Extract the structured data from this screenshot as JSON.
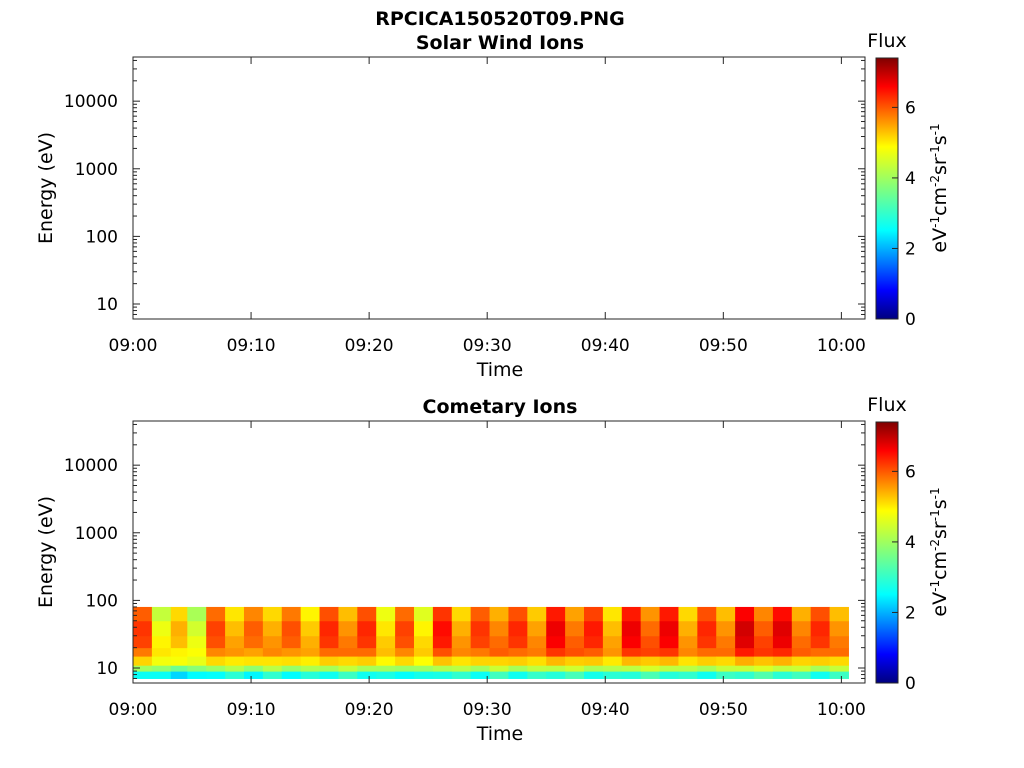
{
  "figure": {
    "title": "RPCICA150520T09.PNG"
  },
  "colorbar": {
    "label": "Flux",
    "unit_parts": [
      "eV",
      "-1",
      "cm",
      "-2",
      "sr",
      "-1",
      "s",
      "-1"
    ],
    "ticks": [
      "0",
      "2",
      "4",
      "6"
    ],
    "range": [
      0,
      7.4
    ],
    "colormap": "jet"
  },
  "chart_data": [
    {
      "type": "heatmap",
      "title": "Solar Wind Ions",
      "xlabel": "Time",
      "ylabel": "Energy (eV)",
      "x_ticks": [
        "09:00",
        "09:10",
        "09:20",
        "09:30",
        "09:40",
        "09:50",
        "10:00"
      ],
      "y_ticks": [
        "10",
        "100",
        "1000",
        "10000"
      ],
      "y_scale": "log",
      "ylim": [
        6,
        45000
      ],
      "xlim": [
        "09:00",
        "10:02"
      ],
      "values": []
    },
    {
      "type": "heatmap",
      "title": "Cometary Ions",
      "xlabel": "Time",
      "ylabel": "Energy (eV)",
      "x_ticks": [
        "09:00",
        "09:10",
        "09:20",
        "09:30",
        "09:40",
        "09:50",
        "10:00"
      ],
      "y_ticks": [
        "10",
        "100",
        "1000",
        "10000"
      ],
      "y_scale": "log",
      "ylim": [
        6,
        45000
      ],
      "xlim": [
        "09:00",
        "10:02"
      ],
      "energy_bands_eV": [
        7,
        9,
        11,
        15,
        20,
        30,
        50,
        80
      ],
      "time_bins_min": [
        0,
        1.6,
        3.2,
        4.6,
        6.2,
        7.8,
        9.4,
        11,
        12.6,
        14.2,
        15.8,
        17.4,
        19,
        20.6,
        22.2,
        23.8,
        25.4,
        27,
        28.6,
        30.2,
        31.8,
        33.4,
        35,
        36.6,
        38.2,
        39.8,
        41.4,
        43,
        44.6,
        46.2,
        47.8,
        49.4,
        51,
        52.6,
        54.2,
        55.8,
        57.4,
        59,
        60.6
      ],
      "band_levels": [
        [
          2.8,
          3.9,
          4.9,
          5.5,
          5.9,
          6.0,
          5.7
        ],
        [
          3.0,
          4.0,
          4.7,
          5.2,
          5.1,
          4.9,
          4.6
        ]
      ],
      "column_offsets": [
        0.1,
        -0.4,
        -0.8,
        -0.6,
        0.0,
        0.2,
        -0.2,
        0.3,
        -0.1,
        0.1,
        0.2,
        0.5,
        0.2,
        -0.1,
        0.0,
        -0.2,
        0.4,
        0.3,
        0.1,
        0.6,
        0.2,
        0.4,
        0.6,
        0.7,
        0.3,
        0.2,
        0.6,
        0.8,
        0.6,
        0.3,
        0.2,
        0.5,
        0.8,
        0.9,
        0.7,
        0.6,
        0.2,
        0.5,
        0.4
      ]
    }
  ]
}
